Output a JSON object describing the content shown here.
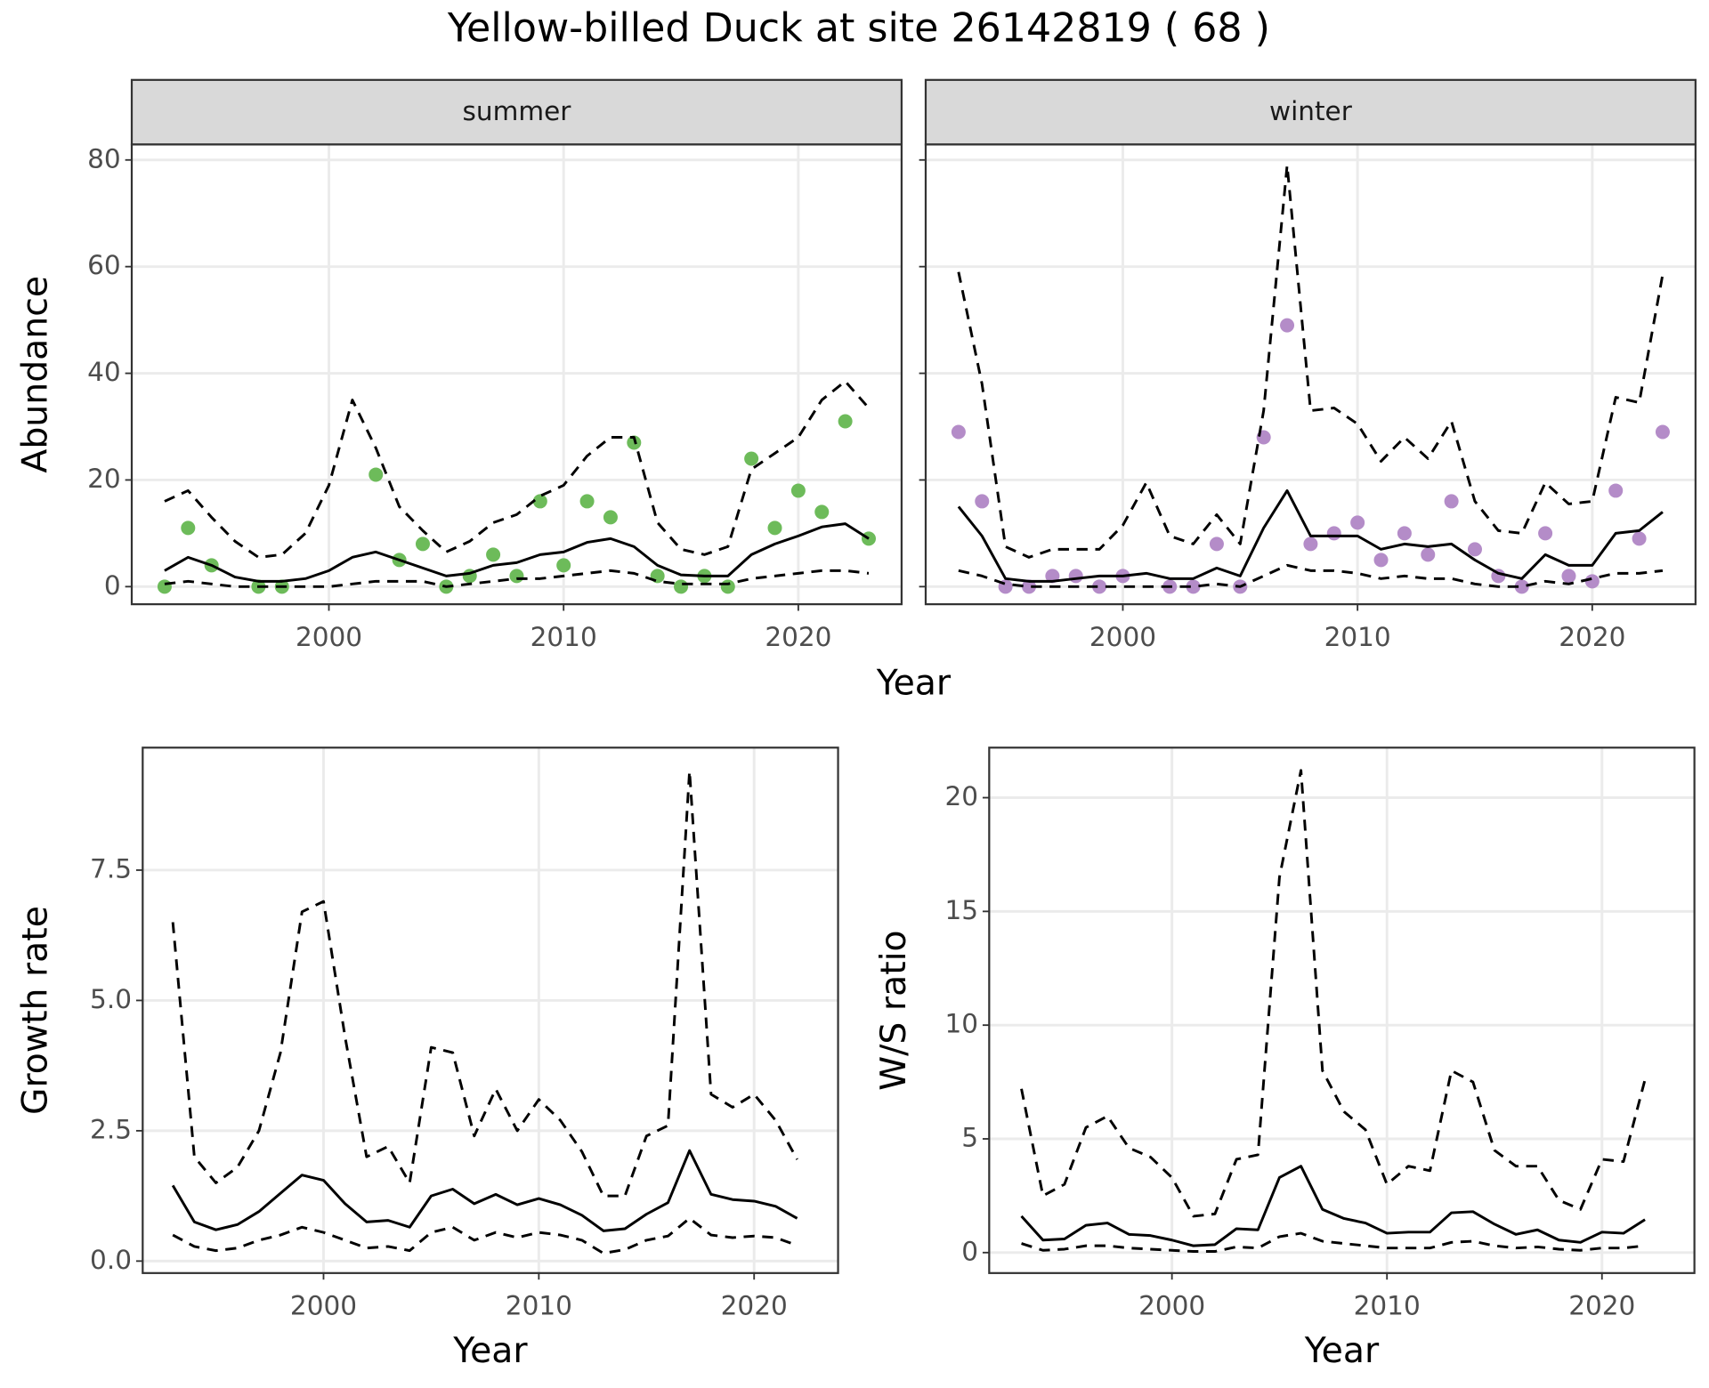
{
  "title": "Yellow-billed Duck at site 26142819 ( 68 )",
  "chart_data": [
    {
      "type": "line",
      "xlabel": "Year",
      "ylabel": "Abundance",
      "x": [
        1993,
        1994,
        1995,
        1996,
        1997,
        1998,
        1999,
        2000,
        2001,
        2002,
        2003,
        2004,
        2005,
        2006,
        2007,
        2008,
        2009,
        2010,
        2011,
        2012,
        2013,
        2014,
        2015,
        2016,
        2017,
        2018,
        2019,
        2020,
        2021,
        2022,
        2023
      ],
      "xlim": [
        1991.6,
        2024.4
      ],
      "xticks": [
        2000,
        2010,
        2020
      ],
      "ylim": [
        -3.3,
        82.9
      ],
      "yticks": [
        0,
        20,
        40,
        60,
        80
      ],
      "grid": true,
      "facets": [
        {
          "label": "summer",
          "series": [
            {
              "style": "points",
              "color": "#6dbb5a",
              "values": [
                0,
                11,
                4,
                null,
                0,
                0,
                null,
                null,
                null,
                21,
                5,
                8,
                0,
                2,
                6,
                2,
                16,
                4,
                16,
                13,
                27,
                2,
                0,
                2,
                0,
                24,
                11,
                18,
                14,
                31,
                9
              ]
            },
            {
              "style": "solid",
              "color": "#000000",
              "values": [
                3,
                5.5,
                4,
                1.8,
                1,
                1,
                1.5,
                3,
                5.5,
                6.5,
                5,
                3.5,
                2,
                2.5,
                4,
                4.5,
                6,
                6.5,
                8.3,
                9,
                7.5,
                4,
                2.2,
                2,
                2,
                6,
                8,
                9.5,
                11.2,
                11.8,
                9
              ]
            },
            {
              "style": "dashed",
              "color": "#000000",
              "values": [
                16,
                18,
                13,
                8.5,
                5.5,
                6,
                10,
                19,
                35,
                26,
                15,
                10.5,
                6.5,
                8.5,
                12,
                13.5,
                17,
                19,
                24.5,
                28,
                28,
                12,
                7,
                6,
                7.5,
                22,
                25,
                28,
                35,
                38.5,
                33.5
              ]
            },
            {
              "style": "dashed",
              "color": "#000000",
              "values": [
                0.5,
                1,
                0.5,
                0,
                0,
                0,
                0,
                0,
                0.5,
                1,
                1,
                1,
                0,
                0.5,
                1,
                1.5,
                1.5,
                2,
                2.5,
                3,
                2.5,
                1,
                0.5,
                0.5,
                0.5,
                1.5,
                2,
                2.5,
                3,
                3,
                2.5
              ]
            }
          ]
        },
        {
          "label": "winter",
          "series": [
            {
              "style": "points",
              "color": "#b48cc8",
              "values": [
                29,
                16,
                0,
                0,
                2,
                2,
                0,
                2,
                null,
                0,
                0,
                8,
                0,
                28,
                49,
                8,
                10,
                12,
                5,
                10,
                6,
                16,
                7,
                2,
                0,
                10,
                2,
                1,
                18,
                9,
                29
              ]
            },
            {
              "style": "solid",
              "color": "#000000",
              "values": [
                15,
                9.5,
                1.5,
                1,
                1,
                1.5,
                2,
                2,
                2.5,
                1.5,
                1.5,
                3.5,
                2,
                11,
                18,
                9.5,
                9.5,
                9.5,
                7,
                8,
                7.5,
                8,
                5,
                2.5,
                1.5,
                6,
                4,
                4,
                10,
                10.5,
                14
              ]
            },
            {
              "style": "dashed",
              "color": "#000000",
              "values": [
                59,
                38,
                7.5,
                5.5,
                7,
                7,
                7,
                11.5,
                19.5,
                9.5,
                8,
                13.5,
                8,
                33,
                79,
                33,
                33.5,
                30.5,
                23.5,
                28,
                24,
                31,
                16,
                10.5,
                10,
                19.5,
                15.5,
                16,
                35.5,
                34.5,
                58.5
              ]
            },
            {
              "style": "dashed",
              "color": "#000000",
              "values": [
                3,
                2,
                0.5,
                0,
                0,
                0,
                0,
                0,
                0,
                0,
                0,
                0.5,
                0,
                2,
                4,
                3,
                3,
                2.5,
                1.5,
                2,
                1.5,
                1.5,
                0.5,
                0,
                0,
                1,
                0.5,
                1.5,
                2.5,
                2.5,
                3
              ]
            }
          ]
        }
      ]
    },
    {
      "type": "line",
      "xlabel": "Year",
      "ylabel": "Growth rate",
      "x": [
        1993,
        1994,
        1995,
        1996,
        1997,
        1998,
        1999,
        2000,
        2001,
        2002,
        2003,
        2004,
        2005,
        2006,
        2007,
        2008,
        2009,
        2010,
        2011,
        2012,
        2013,
        2014,
        2015,
        2016,
        2017,
        2018,
        2019,
        2020,
        2021,
        2022
      ],
      "xlim": [
        1991.6,
        2023.9
      ],
      "xticks": [
        2000,
        2010,
        2020
      ],
      "ylim": [
        -0.23,
        9.85
      ],
      "yticks": [
        {
          "value": 0,
          "label": "0.0"
        },
        2.5,
        {
          "value": 5,
          "label": "5.0"
        },
        7.5
      ],
      "grid": true,
      "series": [
        {
          "style": "solid",
          "color": "#000000",
          "values": [
            1.45,
            0.75,
            0.6,
            0.7,
            0.95,
            1.3,
            1.65,
            1.55,
            1.1,
            0.75,
            0.78,
            0.65,
            1.25,
            1.38,
            1.1,
            1.28,
            1.08,
            1.2,
            1.08,
            0.88,
            0.58,
            0.62,
            0.9,
            1.12,
            2.12,
            1.28,
            1.18,
            1.15,
            1.05,
            0.82
          ]
        },
        {
          "style": "dashed",
          "color": "#000000",
          "values": [
            6.5,
            2,
            1.5,
            1.8,
            2.5,
            4,
            6.7,
            6.9,
            4.3,
            2,
            2.2,
            1.5,
            4.1,
            4,
            2.4,
            3.3,
            2.5,
            3.1,
            2.7,
            2.1,
            1.25,
            1.25,
            2.4,
            2.6,
            9.4,
            3.2,
            2.95,
            3.2,
            2.7,
            1.95
          ]
        },
        {
          "style": "dashed",
          "color": "#000000",
          "values": [
            0.5,
            0.28,
            0.2,
            0.25,
            0.4,
            0.5,
            0.65,
            0.55,
            0.4,
            0.25,
            0.28,
            0.2,
            0.55,
            0.65,
            0.4,
            0.55,
            0.45,
            0.55,
            0.5,
            0.4,
            0.15,
            0.22,
            0.4,
            0.48,
            0.82,
            0.5,
            0.45,
            0.48,
            0.45,
            0.3
          ]
        }
      ]
    },
    {
      "type": "line",
      "xlabel": "Year",
      "ylabel": "W/S ratio",
      "x": [
        1993,
        1994,
        1995,
        1996,
        1997,
        1998,
        1999,
        2000,
        2001,
        2002,
        2003,
        2004,
        2005,
        2006,
        2007,
        2008,
        2009,
        2010,
        2011,
        2012,
        2013,
        2014,
        2015,
        2016,
        2017,
        2018,
        2019,
        2020,
        2021,
        2022
      ],
      "xlim": [
        1991.5,
        2024.3
      ],
      "xticks": [
        2000,
        2010,
        2020
      ],
      "ylim": [
        -0.9,
        22.2
      ],
      "yticks": [
        0,
        5,
        10,
        15,
        20
      ],
      "grid": true,
      "series": [
        {
          "style": "solid",
          "color": "#000000",
          "values": [
            1.6,
            0.55,
            0.6,
            1.2,
            1.3,
            0.8,
            0.75,
            0.55,
            0.3,
            0.35,
            1.05,
            1.0,
            3.3,
            3.8,
            1.9,
            1.5,
            1.3,
            0.85,
            0.9,
            0.9,
            1.75,
            1.8,
            1.25,
            0.8,
            1.0,
            0.55,
            0.45,
            0.9,
            0.85,
            1.45
          ]
        },
        {
          "style": "dashed",
          "color": "#000000",
          "values": [
            7.2,
            2.5,
            3,
            5.5,
            6,
            4.6,
            4.2,
            3.3,
            1.6,
            1.7,
            4.1,
            4.3,
            16.5,
            21.2,
            8,
            6.2,
            5.4,
            3,
            3.8,
            3.6,
            8,
            7.5,
            4.5,
            3.8,
            3.8,
            2.3,
            1.9,
            4.1,
            4,
            7.6
          ]
        },
        {
          "style": "dashed",
          "color": "#000000",
          "values": [
            0.4,
            0.1,
            0.15,
            0.3,
            0.3,
            0.2,
            0.15,
            0.1,
            0.05,
            0.05,
            0.25,
            0.2,
            0.7,
            0.85,
            0.5,
            0.4,
            0.3,
            0.2,
            0.2,
            0.2,
            0.45,
            0.5,
            0.3,
            0.2,
            0.25,
            0.15,
            0.1,
            0.2,
            0.2,
            0.3
          ]
        }
      ]
    }
  ]
}
